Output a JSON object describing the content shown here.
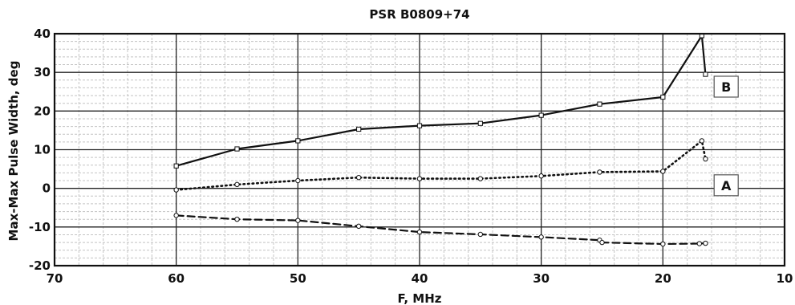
{
  "chart_data": {
    "type": "line",
    "title": "PSR B0809+74",
    "xlabel": "F, MHz",
    "ylabel": "Max-Max Pulse Width, deg",
    "xlim": [
      70,
      10
    ],
    "ylim": [
      -20,
      40
    ],
    "x_reversed": true,
    "xticks": [
      70,
      60,
      50,
      40,
      30,
      20,
      10
    ],
    "yticks": [
      -20,
      -10,
      0,
      10,
      20,
      30,
      40
    ],
    "xticks_minor_step": 2,
    "yticks_minor_step": 2,
    "grid": true,
    "series": [
      {
        "key": "upper",
        "style": "solid",
        "marker": "square",
        "points": [
          [
            60,
            5.8
          ],
          [
            55,
            10.2
          ],
          [
            50,
            12.3
          ],
          [
            45,
            15.3
          ],
          [
            40,
            16.2
          ],
          [
            35,
            16.8
          ],
          [
            30,
            18.9
          ],
          [
            25.2,
            21.8
          ],
          [
            20,
            23.6
          ],
          [
            16.8,
            39.5
          ],
          [
            16.5,
            29.5
          ]
        ]
      },
      {
        "key": "middle",
        "style": "dotted",
        "marker": "circle",
        "points": [
          [
            60,
            -0.4
          ],
          [
            55,
            1.0
          ],
          [
            50,
            2.0
          ],
          [
            45,
            2.8
          ],
          [
            40,
            2.5
          ],
          [
            35,
            2.5
          ],
          [
            30,
            3.2
          ],
          [
            25.2,
            4.2
          ],
          [
            20,
            4.4
          ],
          [
            16.8,
            12.3
          ],
          [
            16.5,
            7.6
          ]
        ]
      },
      {
        "key": "lower",
        "style": "dashed",
        "marker": "circle",
        "points": [
          [
            60,
            -7.0
          ],
          [
            55,
            -8.0
          ],
          [
            50,
            -8.3
          ],
          [
            45,
            -9.8
          ],
          [
            40,
            -11.3
          ],
          [
            35,
            -11.9
          ],
          [
            30,
            -12.6
          ],
          [
            25.2,
            -13.4
          ],
          [
            25,
            -14.0
          ],
          [
            20,
            -14.4
          ],
          [
            17,
            -14.3
          ],
          [
            16.5,
            -14.2
          ]
        ]
      }
    ],
    "annotations": [
      {
        "text": "B",
        "x": 14.8,
        "y": 26.3,
        "boxed": true
      },
      {
        "text": "A",
        "x": 14.8,
        "y": 0.8,
        "boxed": true
      }
    ]
  }
}
